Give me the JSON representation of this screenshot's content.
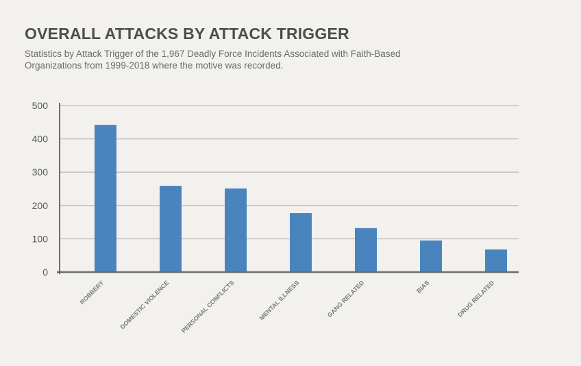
{
  "chart_data": {
    "type": "bar",
    "title": "OVERALL ATTACKS BY ATTACK TRIGGER",
    "subtitle": "Statistics by Attack Trigger of the 1,967 Deadly Force Incidents Associated with Faith-Based Organizations from 1999-2018 where the motive was recorded.",
    "categories": [
      "ROBBERY",
      "DOMESTIC VIOLENCE",
      "PERSONAL CONFLICTS",
      "MENTAL ILLNESS",
      "GANG RELATED",
      "BIAS",
      "DRUG RELATED"
    ],
    "values": [
      442,
      259,
      251,
      177,
      132,
      95,
      68
    ],
    "xlabel": "",
    "ylabel": "",
    "ylim": [
      0,
      500
    ],
    "yticks": [
      0,
      100,
      200,
      300,
      400,
      500
    ],
    "grid": true,
    "bar_color": "#4a84bf",
    "grid_color": "#c4c2bd",
    "axis_color": "#6b6b6b"
  }
}
